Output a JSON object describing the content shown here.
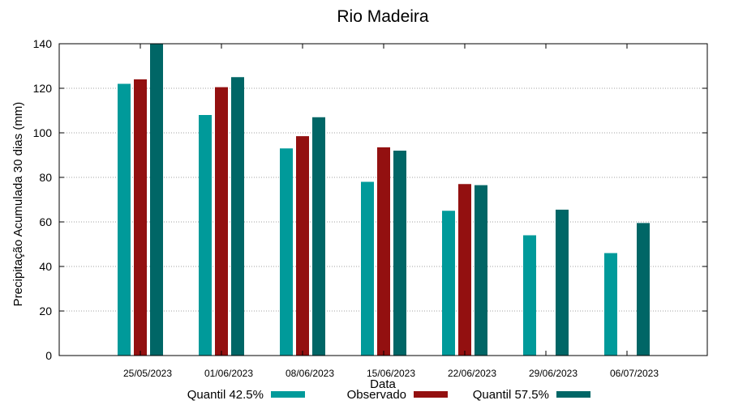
{
  "chart_data": {
    "type": "bar",
    "title": "Rio Madeira",
    "xlabel": "Data",
    "ylabel": "Precipitação Acumulada 30 dias (mm)",
    "ylim": [
      0,
      140
    ],
    "yticks": [
      0,
      20,
      40,
      60,
      80,
      100,
      120,
      140
    ],
    "categories": [
      "25/05/2023",
      "01/06/2023",
      "08/06/2023",
      "15/06/2023",
      "22/06/2023",
      "29/06/2023",
      "06/07/2023"
    ],
    "grid": true,
    "legend_position": "bottom",
    "series": [
      {
        "name": "Quantil 42.5%",
        "color": "#009a9a",
        "values": [
          122,
          108,
          93,
          78,
          65,
          54,
          46
        ]
      },
      {
        "name": "Observado",
        "color": "#931010",
        "values": [
          124,
          120.5,
          98.5,
          93.5,
          77,
          null,
          null
        ]
      },
      {
        "name": "Quantil 57.5%",
        "color": "#006666",
        "values": [
          140,
          125,
          107,
          92,
          76.5,
          65.5,
          59.5
        ]
      }
    ]
  }
}
